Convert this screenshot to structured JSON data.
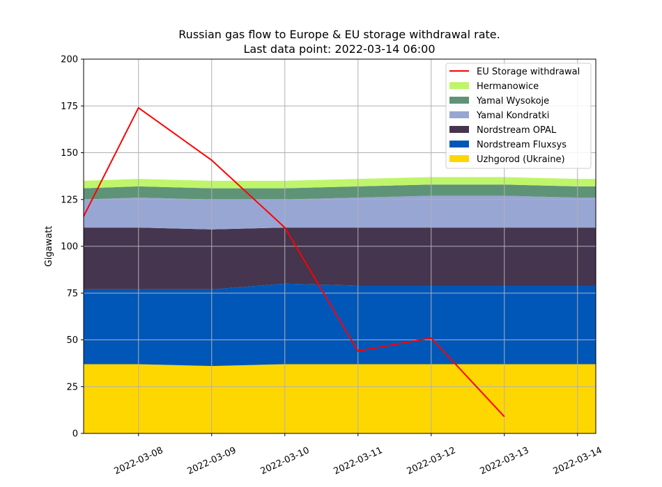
{
  "chart_data": {
    "type": "area",
    "title": "Russian gas flow to Europe & EU storage withdrawal rate.",
    "subtitle": "Last data point: 2022-03-14 06:00",
    "xlabel": "",
    "ylabel": "Gigawatt",
    "xlim": [
      "2022-03-07 06:00",
      "2022-03-14 06:00"
    ],
    "ylim": [
      0,
      200
    ],
    "yticks": [
      0,
      25,
      50,
      75,
      100,
      125,
      150,
      175,
      200
    ],
    "xticks": [
      "2022-03-08",
      "2022-03-09",
      "2022-03-10",
      "2022-03-11",
      "2022-03-12",
      "2022-03-13",
      "2022-03-14"
    ],
    "grid": true,
    "legend_position": "top-right",
    "x": [
      "2022-03-07 06:00",
      "2022-03-08 00:00",
      "2022-03-09 00:00",
      "2022-03-10 00:00",
      "2022-03-11 00:00",
      "2022-03-12 00:00",
      "2022-03-13 00:00",
      "2022-03-14 00:00",
      "2022-03-14 06:00"
    ],
    "stacked_series": [
      {
        "name": "Uzhgorod (Ukraine)",
        "color": "#ffd700",
        "values": [
          37,
          37,
          36,
          37,
          37,
          37,
          37,
          37,
          37
        ]
      },
      {
        "name": "Nordstream Fluxsys",
        "color": "#0057b8",
        "values": [
          40,
          40,
          41,
          43,
          42,
          42,
          42,
          42,
          42
        ]
      },
      {
        "name": "Nordstream OPAL",
        "color": "#45354f",
        "values": [
          33,
          33,
          32,
          30,
          31,
          31,
          31,
          31,
          31
        ]
      },
      {
        "name": "Yamal Kondratki",
        "color": "#98a6d4",
        "values": [
          15,
          16,
          16,
          15,
          16,
          17,
          17,
          16,
          16
        ]
      },
      {
        "name": "Yamal Wysokoje",
        "color": "#5f9378",
        "values": [
          6,
          6,
          6,
          6,
          6,
          6,
          6,
          6,
          6
        ]
      },
      {
        "name": "Hermanowice",
        "color": "#bff56a",
        "values": [
          4,
          4,
          4,
          4,
          4,
          4,
          4,
          4,
          4
        ]
      }
    ],
    "line_series": {
      "name": "EU Storage withdrawal",
      "color": "#ff0000",
      "x": [
        "2022-03-07 06:00",
        "2022-03-08 00:00",
        "2022-03-09 00:00",
        "2022-03-10 00:00",
        "2022-03-11 00:00",
        "2022-03-12 00:00",
        "2022-03-13 00:00"
      ],
      "values": [
        116,
        174,
        146,
        110,
        44,
        51,
        9
      ]
    },
    "legend_order": [
      "EU Storage withdrawal",
      "Hermanowice",
      "Yamal Wysokoje",
      "Yamal Kondratki",
      "Nordstream OPAL",
      "Nordstream Fluxsys",
      "Uzhgorod (Ukraine)"
    ],
    "grid_color": "#b0b0b0"
  }
}
